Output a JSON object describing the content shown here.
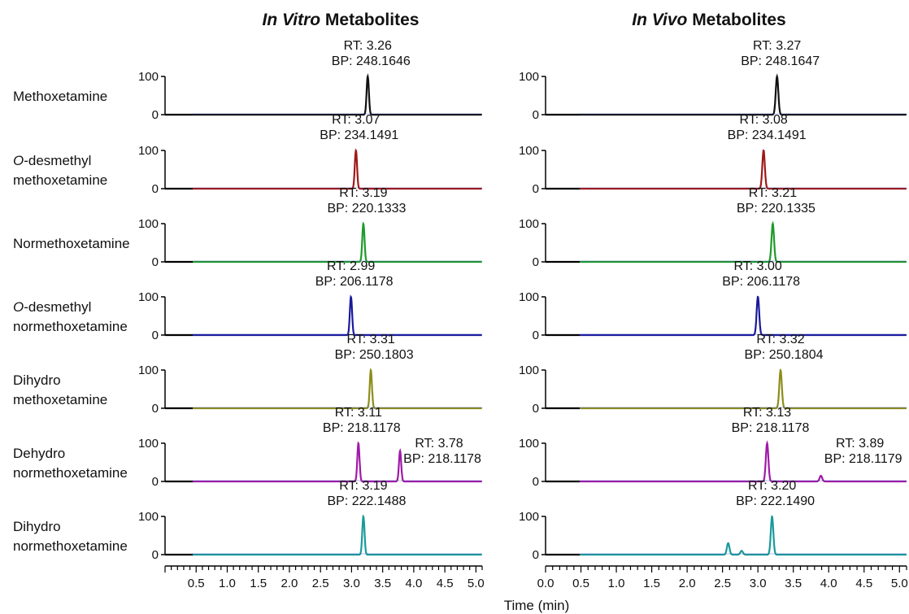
{
  "panels": [
    {
      "title_italic": "In Vitro",
      "title_rest": " Metabolites"
    },
    {
      "title_italic": "In Vivo",
      "title_rest": " Metabolites"
    }
  ],
  "xlabel": "Time (min)",
  "chart_data": {
    "type": "line",
    "xlabel": "Time (min)",
    "xlim": [
      0.0,
      5.1
    ],
    "ylim": [
      0,
      100
    ],
    "y_ticks": [
      "0",
      "100"
    ],
    "x_tick_labels_in_vitro": [
      "0.5",
      "1.0",
      "1.5",
      "2.0",
      "2.5",
      "3.0",
      "3.5",
      "4.0",
      "4.5",
      "5.0"
    ],
    "x_tick_labels_in_vivo": [
      "0.0",
      "0.5",
      "1.0",
      "1.5",
      "2.0",
      "2.5",
      "3.0",
      "3.5",
      "4.0",
      "4.5",
      "5.0"
    ],
    "rows": [
      {
        "label_lines": [
          {
            "italic": "",
            "rest": "Methoxetamine"
          }
        ],
        "color": "#111111",
        "in_vitro": {
          "peaks": [
            {
              "rt": 3.26,
              "height": 100,
              "rt_text": "RT: 3.26",
              "bp_text": "BP: 248.1646"
            }
          ]
        },
        "in_vivo": {
          "peaks": [
            {
              "rt": 3.27,
              "height": 100,
              "rt_text": "RT: 3.27",
              "bp_text": "BP: 248.1647"
            }
          ]
        }
      },
      {
        "label_lines": [
          {
            "italic": "O",
            "rest": "-desmethyl"
          },
          {
            "italic": "",
            "rest": "methoxetamine"
          }
        ],
        "color": "#a01818",
        "in_vitro": {
          "peaks": [
            {
              "rt": 3.07,
              "height": 100,
              "rt_text": "RT: 3.07",
              "bp_text": "BP: 234.1491"
            }
          ]
        },
        "in_vivo": {
          "peaks": [
            {
              "rt": 3.08,
              "height": 100,
              "rt_text": "RT: 3.08",
              "bp_text": "BP: 234.1491"
            }
          ]
        }
      },
      {
        "label_lines": [
          {
            "italic": "",
            "rest": "Normethoxetamine"
          }
        ],
        "color": "#1e9a2a",
        "in_vitro": {
          "peaks": [
            {
              "rt": 3.19,
              "height": 100,
              "rt_text": "RT: 3.19",
              "bp_text": "BP: 220.1333"
            }
          ]
        },
        "in_vivo": {
          "peaks": [
            {
              "rt": 3.21,
              "height": 100,
              "rt_text": "RT: 3.21",
              "bp_text": "BP: 220.1335"
            }
          ]
        }
      },
      {
        "label_lines": [
          {
            "italic": "O",
            "rest": "-desmethyl"
          },
          {
            "italic": "",
            "rest": "normethoxetamine"
          }
        ],
        "color": "#1a1a9a",
        "in_vitro": {
          "peaks": [
            {
              "rt": 2.99,
              "height": 100,
              "rt_text": "RT: 2.99",
              "bp_text": "BP: 206.1178"
            }
          ]
        },
        "in_vivo": {
          "peaks": [
            {
              "rt": 3.0,
              "height": 100,
              "rt_text": "RT: 3.00",
              "bp_text": "BP: 206.1178"
            }
          ]
        }
      },
      {
        "label_lines": [
          {
            "italic": "",
            "rest": "Dihydro"
          },
          {
            "italic": "",
            "rest": "methoxetamine"
          }
        ],
        "color": "#8d8d1a",
        "in_vitro": {
          "peaks": [
            {
              "rt": 3.31,
              "height": 100,
              "rt_text": "RT: 3.31",
              "bp_text": "BP: 250.1803"
            }
          ]
        },
        "in_vivo": {
          "peaks": [
            {
              "rt": 3.32,
              "height": 100,
              "rt_text": "RT: 3.32",
              "bp_text": "BP: 250.1804"
            }
          ]
        }
      },
      {
        "label_lines": [
          {
            "italic": "",
            "rest": "Dehydro"
          },
          {
            "italic": "",
            "rest": "normethoxetamine"
          }
        ],
        "color": "#a01aa8",
        "in_vitro": {
          "peaks": [
            {
              "rt": 3.11,
              "height": 100,
              "rt_text": "RT: 3.11",
              "bp_text": "BP: 218.1178"
            },
            {
              "rt": 3.78,
              "height": 80,
              "rt_text": "RT: 3.78",
              "bp_text": "BP: 218.1178"
            }
          ]
        },
        "in_vivo": {
          "peaks": [
            {
              "rt": 3.13,
              "height": 100,
              "rt_text": "RT: 3.13",
              "bp_text": "BP: 218.1178"
            },
            {
              "rt": 3.89,
              "height": 15,
              "rt_text": "RT: 3.89",
              "bp_text": "BP: 218.1179"
            }
          ]
        }
      },
      {
        "label_lines": [
          {
            "italic": "",
            "rest": "Dihydro"
          },
          {
            "italic": "",
            "rest": "normethoxetamine"
          }
        ],
        "color": "#1a9a9a",
        "in_vitro": {
          "peaks": [
            {
              "rt": 3.19,
              "height": 100,
              "rt_text": "RT: 3.19",
              "bp_text": "BP: 222.1488"
            }
          ]
        },
        "in_vivo": {
          "peaks": [
            {
              "rt": 3.2,
              "height": 100,
              "rt_text": "RT: 3.20",
              "bp_text": "BP: 222.1490"
            },
            {
              "rt": 2.58,
              "height": 30
            },
            {
              "rt": 2.77,
              "height": 10
            }
          ]
        }
      }
    ]
  }
}
